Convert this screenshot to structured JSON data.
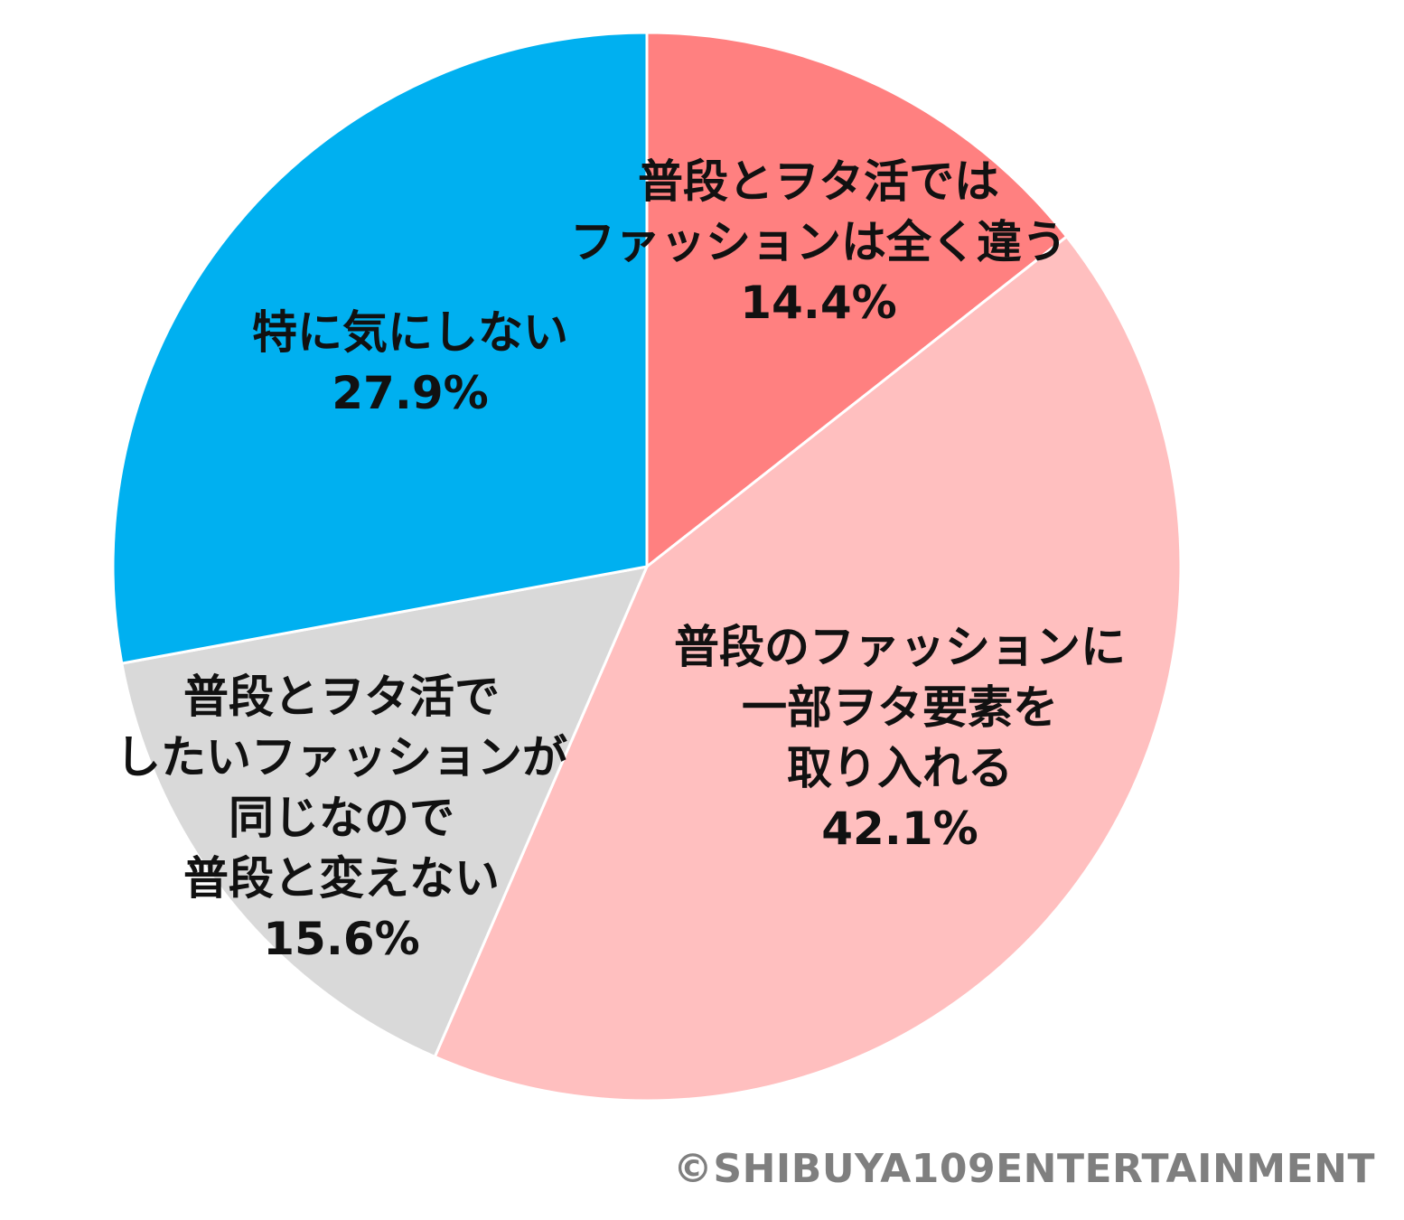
{
  "chart_data": {
    "type": "pie",
    "start": "12 o'clock",
    "direction": "clockwise",
    "slices": [
      {
        "label_lines": [
          "普段とヲタ活では",
          "ファッションは全く違う"
        ],
        "value": 14.4,
        "value_text": "14.4%",
        "color": "#FF8080"
      },
      {
        "label_lines": [
          "普段のファッションに",
          "一部ヲタ要素を",
          "取り入れる"
        ],
        "value": 42.1,
        "value_text": "42.1%",
        "color": "#FFBFBF"
      },
      {
        "label_lines": [
          "普段とヲタ活で",
          "したいファッションが",
          "同じなので",
          "普段と変えない"
        ],
        "value": 15.6,
        "value_text": "15.6%",
        "color": "#D9D9D9"
      },
      {
        "label_lines": [
          "特に気にしない"
        ],
        "value": 27.9,
        "value_text": "27.9%",
        "color": "#00B0F0"
      }
    ]
  },
  "copyright": "©SHIBUYA109ENTERTAINMENT"
}
